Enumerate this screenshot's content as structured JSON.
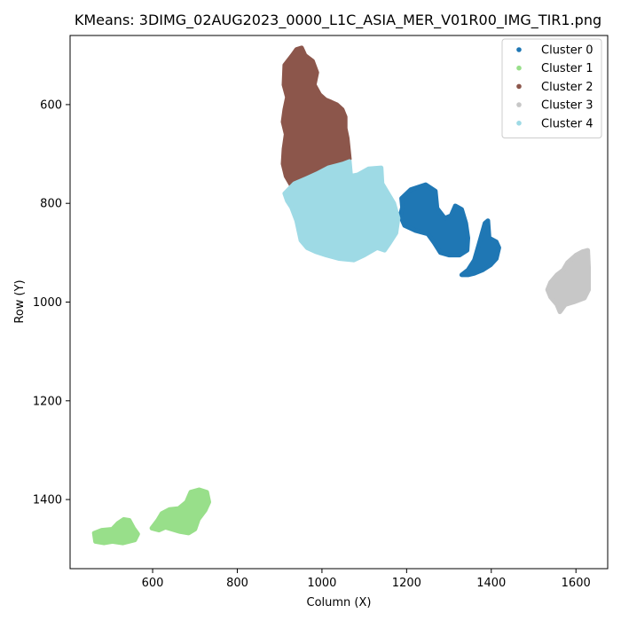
{
  "chart_data": {
    "type": "scatter",
    "title": "KMeans: 3DIMG_02AUG2023_0000_L1C_ASIA_MER_V01R00_IMG_TIR1.png",
    "xlabel": "Column (X)",
    "ylabel": "Row (Y)",
    "xlim": [
      405,
      1675
    ],
    "ylim": [
      1540,
      460
    ],
    "y_inverted": true,
    "grid": false,
    "legend_position": "top-right",
    "x_ticks": [
      600,
      800,
      1000,
      1200,
      1400,
      1600
    ],
    "y_ticks": [
      600,
      800,
      1000,
      1200,
      1400
    ],
    "series": [
      {
        "name": "Cluster 0",
        "color": "#1f77b4",
        "regions": [
          [
            [
              1188,
              790
            ],
            [
              1210,
              772
            ],
            [
              1245,
              762
            ],
            [
              1268,
              775
            ],
            [
              1272,
              810
            ],
            [
              1290,
              830
            ],
            [
              1305,
              825
            ],
            [
              1315,
              805
            ],
            [
              1330,
              812
            ],
            [
              1340,
              840
            ],
            [
              1345,
              870
            ],
            [
              1343,
              895
            ],
            [
              1325,
              905
            ],
            [
              1300,
              905
            ],
            [
              1280,
              900
            ],
            [
              1265,
              880
            ],
            [
              1250,
              862
            ],
            [
              1220,
              855
            ],
            [
              1195,
              845
            ],
            [
              1185,
              825
            ],
            [
              1190,
              808
            ]
          ],
          [
            [
              1330,
              945
            ],
            [
              1345,
              935
            ],
            [
              1360,
              915
            ],
            [
              1365,
              900
            ],
            [
              1375,
              870
            ],
            [
              1385,
              840
            ],
            [
              1392,
              835
            ],
            [
              1395,
              870
            ],
            [
              1412,
              878
            ],
            [
              1418,
              890
            ],
            [
              1412,
              912
            ],
            [
              1398,
              925
            ],
            [
              1380,
              935
            ],
            [
              1360,
              942
            ],
            [
              1345,
              945
            ]
          ]
        ]
      },
      {
        "name": "Cluster 1",
        "color": "#98df8a",
        "regions": [
          [
            [
              462,
              1468
            ],
            [
              480,
              1462
            ],
            [
              505,
              1460
            ],
            [
              518,
              1448
            ],
            [
              532,
              1440
            ],
            [
              545,
              1442
            ],
            [
              555,
              1458
            ],
            [
              565,
              1470
            ],
            [
              558,
              1482
            ],
            [
              530,
              1488
            ],
            [
              505,
              1485
            ],
            [
              485,
              1488
            ],
            [
              465,
              1485
            ]
          ],
          [
            [
              598,
              1458
            ],
            [
              612,
              1442
            ],
            [
              622,
              1428
            ],
            [
              640,
              1420
            ],
            [
              662,
              1418
            ],
            [
              680,
              1405
            ],
            [
              690,
              1385
            ],
            [
              710,
              1380
            ],
            [
              728,
              1385
            ],
            [
              733,
              1405
            ],
            [
              724,
              1422
            ],
            [
              708,
              1440
            ],
            [
              700,
              1460
            ],
            [
              685,
              1468
            ],
            [
              665,
              1465
            ],
            [
              645,
              1460
            ],
            [
              630,
              1456
            ],
            [
              615,
              1462
            ]
          ]
        ]
      },
      {
        "name": "Cluster 2",
        "color": "#8c564b",
        "regions": [
          [
            [
              912,
              520
            ],
            [
              930,
              500
            ],
            [
              940,
              488
            ],
            [
              952,
              485
            ],
            [
              960,
              500
            ],
            [
              978,
              512
            ],
            [
              988,
              535
            ],
            [
              982,
              560
            ],
            [
              995,
              580
            ],
            [
              1008,
              590
            ],
            [
              1022,
              595
            ],
            [
              1035,
              600
            ],
            [
              1048,
              610
            ],
            [
              1055,
              625
            ],
            [
              1055,
              648
            ],
            [
              1060,
              668
            ],
            [
              1065,
              710
            ],
            [
              990,
              740
            ],
            [
              955,
              755
            ],
            [
              932,
              770
            ],
            [
              915,
              745
            ],
            [
              908,
              720
            ],
            [
              910,
              690
            ],
            [
              915,
              660
            ],
            [
              908,
              635
            ],
            [
              912,
              610
            ],
            [
              918,
              585
            ],
            [
              910,
              560
            ]
          ]
        ]
      },
      {
        "name": "Cluster 3",
        "color": "#c7c7c7",
        "regions": [
          [
            [
              1540,
              960
            ],
            [
              1555,
              945
            ],
            [
              1570,
              935
            ],
            [
              1580,
              920
            ],
            [
              1600,
              905
            ],
            [
              1615,
              898
            ],
            [
              1628,
              895
            ],
            [
              1630,
              930
            ],
            [
              1630,
              975
            ],
            [
              1620,
              992
            ],
            [
              1595,
              1000
            ],
            [
              1575,
              1005
            ],
            [
              1562,
              1020
            ],
            [
              1555,
              1005
            ],
            [
              1540,
              990
            ],
            [
              1533,
              975
            ]
          ]
        ]
      },
      {
        "name": "Cluster 4",
        "color": "#9edae5",
        "regions": [
          [
            [
              912,
              780
            ],
            [
              935,
              760
            ],
            [
              962,
              750
            ],
            [
              988,
              740
            ],
            [
              1015,
              728
            ],
            [
              1050,
              720
            ],
            [
              1065,
              715
            ],
            [
              1068,
              745
            ],
            [
              1085,
              742
            ],
            [
              1110,
              730
            ],
            [
              1140,
              728
            ],
            [
              1142,
              760
            ],
            [
              1170,
              800
            ],
            [
              1180,
              830
            ],
            [
              1175,
              860
            ],
            [
              1160,
              880
            ],
            [
              1148,
              895
            ],
            [
              1130,
              890
            ],
            [
              1100,
              905
            ],
            [
              1075,
              915
            ],
            [
              1040,
              912
            ],
            [
              1010,
              905
            ],
            [
              985,
              898
            ],
            [
              965,
              890
            ],
            [
              950,
              875
            ],
            [
              945,
              855
            ],
            [
              940,
              835
            ],
            [
              928,
              808
            ],
            [
              918,
              795
            ]
          ]
        ]
      }
    ]
  }
}
